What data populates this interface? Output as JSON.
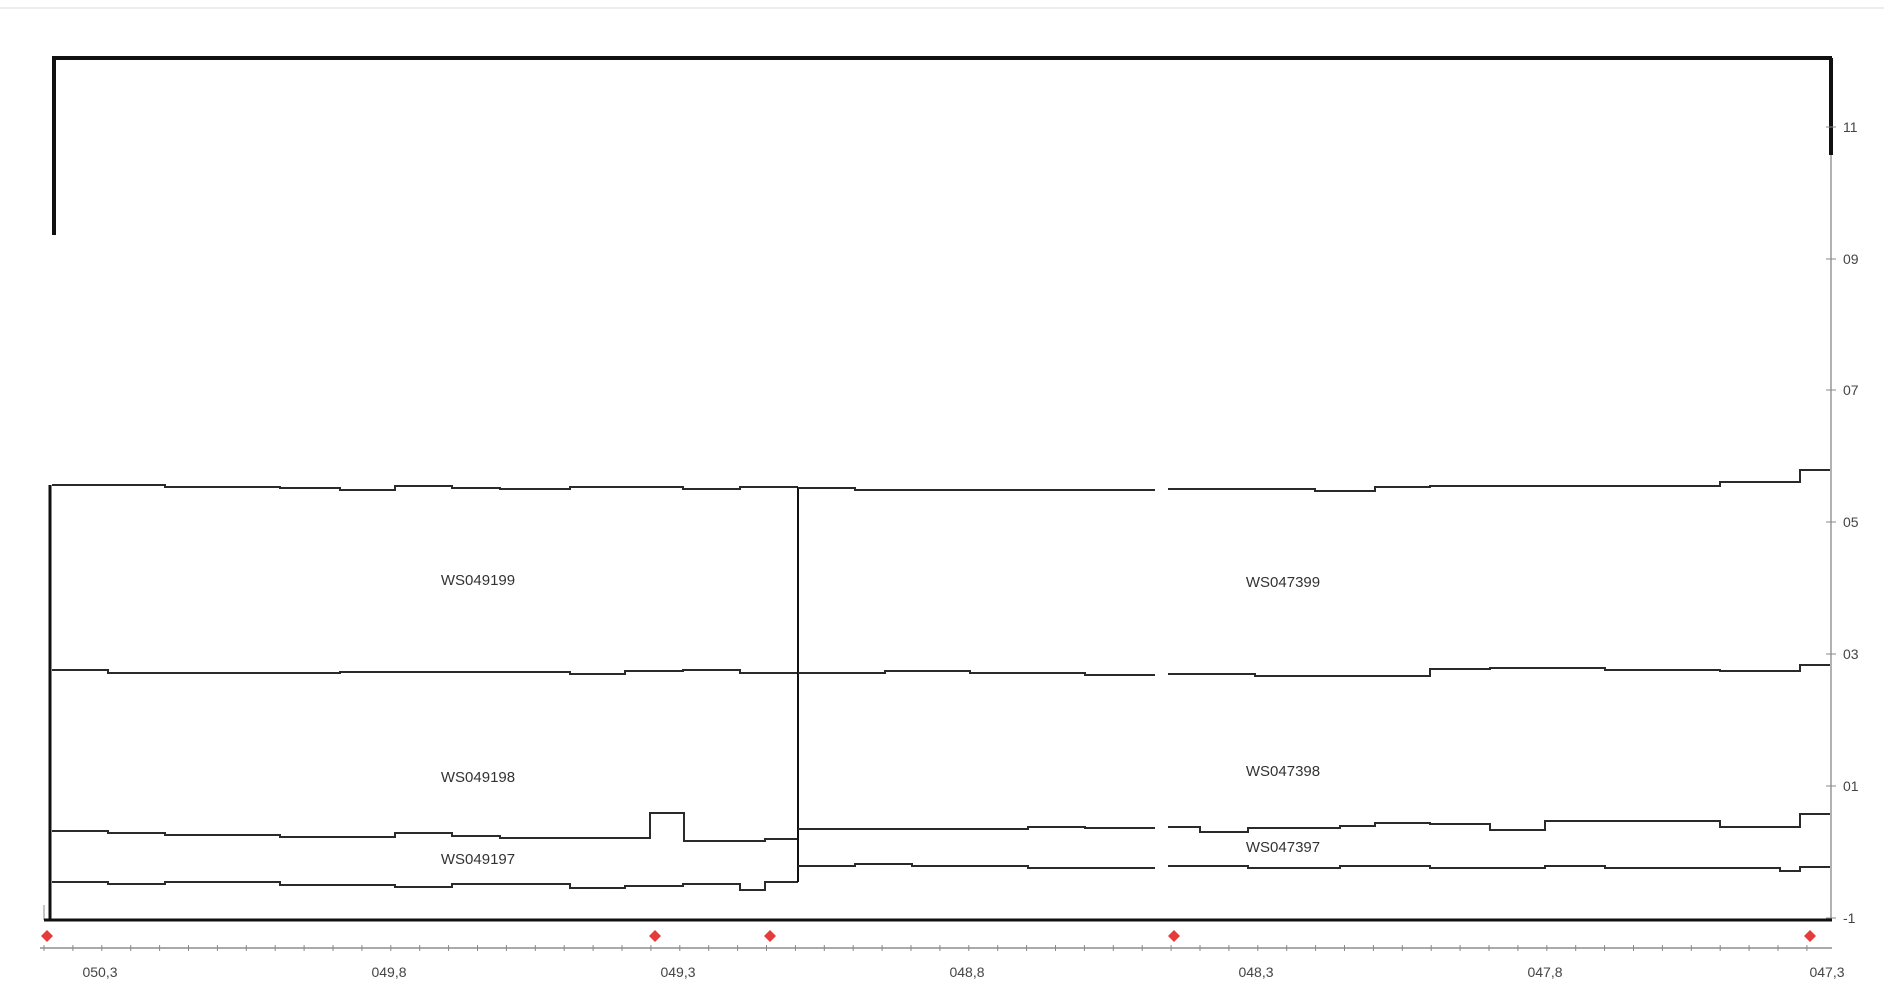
{
  "section_labels": [
    "WS049199",
    "WS049198",
    "WS049197",
    "WS047399",
    "WS047398",
    "WS047397"
  ],
  "x_axis": {
    "ticks": [
      "050,3",
      "049,8",
      "049,3",
      "048,8",
      "048,3",
      "047,8",
      "047,3"
    ]
  },
  "y_axis": {
    "ticks": [
      "11",
      "09",
      "07",
      "05",
      "03",
      "01",
      "-1"
    ]
  },
  "colors": {
    "line": "#2a2a2a",
    "frame": "#111111",
    "marker": "#e63b3b",
    "tick_text": "#444444"
  }
}
